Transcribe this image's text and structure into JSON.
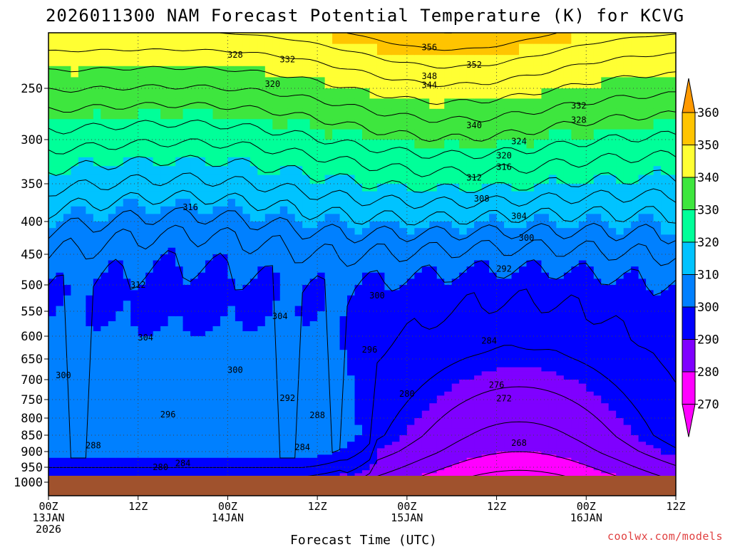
{
  "chart_data": {
    "type": "heatmap",
    "title": "2026011300 NAM Forecast Potential Temperature (K) for KCVG",
    "xlabel": "Forecast Time (UTC)",
    "ylabel": "",
    "x_ticks": [
      {
        "hour": 0,
        "lines": [
          "00Z",
          "13JAN",
          "2026"
        ]
      },
      {
        "hour": 12,
        "lines": [
          "12Z"
        ]
      },
      {
        "hour": 24,
        "lines": [
          "00Z",
          "14JAN"
        ]
      },
      {
        "hour": 36,
        "lines": [
          "12Z"
        ]
      },
      {
        "hour": 48,
        "lines": [
          "00Z",
          "15JAN"
        ]
      },
      {
        "hour": 60,
        "lines": [
          "12Z"
        ]
      },
      {
        "hour": 72,
        "lines": [
          "00Z",
          "16JAN"
        ]
      },
      {
        "hour": 84,
        "lines": [
          "12Z"
        ]
      }
    ],
    "xlim": [
      0,
      84
    ],
    "y_ticks": [
      250,
      300,
      350,
      400,
      450,
      500,
      550,
      600,
      650,
      700,
      750,
      800,
      850,
      900,
      950,
      1000
    ],
    "ylim": [
      200,
      1000
    ],
    "colorbar": {
      "labels": [
        "360",
        "350",
        "340",
        "330",
        "320",
        "310",
        "300",
        "290",
        "280",
        "270"
      ],
      "bins": [
        {
          "min": 360,
          "color": "#ff9900"
        },
        {
          "min": 350,
          "color": "#ffc400"
        },
        {
          "min": 340,
          "color": "#ffff33"
        },
        {
          "min": 330,
          "color": "#3ee63e"
        },
        {
          "min": 320,
          "color": "#00ff99"
        },
        {
          "min": 310,
          "color": "#00c3ff"
        },
        {
          "min": 300,
          "color": "#0080ff"
        },
        {
          "min": 290,
          "color": "#0000ff"
        },
        {
          "min": 280,
          "color": "#7f00ff"
        },
        {
          "min": 270,
          "color": "#ff00ff"
        },
        {
          "min": 0,
          "color": "#ff00ff"
        }
      ]
    },
    "ground": {
      "pressure": 977,
      "color": "#a0522d"
    },
    "contour_interval": 4,
    "contour_labels": [
      {
        "text": "356",
        "hour": 51,
        "p": 213
      },
      {
        "text": "352",
        "hour": 57,
        "p": 229
      },
      {
        "text": "348",
        "hour": 51,
        "p": 239
      },
      {
        "text": "344",
        "hour": 51,
        "p": 247
      },
      {
        "text": "340",
        "hour": 57,
        "p": 286
      },
      {
        "text": "332",
        "hour": 71,
        "p": 267
      },
      {
        "text": "328",
        "hour": 71,
        "p": 281
      },
      {
        "text": "328",
        "hour": 25,
        "p": 220
      },
      {
        "text": "332",
        "hour": 32,
        "p": 224
      },
      {
        "text": "320",
        "hour": 30,
        "p": 246
      },
      {
        "text": "324",
        "hour": 63,
        "p": 302
      },
      {
        "text": "320",
        "hour": 61,
        "p": 318
      },
      {
        "text": "316",
        "hour": 61,
        "p": 331
      },
      {
        "text": "312",
        "hour": 57,
        "p": 343
      },
      {
        "text": "308",
        "hour": 58,
        "p": 370
      },
      {
        "text": "304",
        "hour": 63,
        "p": 393
      },
      {
        "text": "300",
        "hour": 64,
        "p": 425
      },
      {
        "text": "316",
        "hour": 19,
        "p": 381
      },
      {
        "text": "312",
        "hour": 12,
        "p": 500
      },
      {
        "text": "304",
        "hour": 31,
        "p": 560
      },
      {
        "text": "300",
        "hour": 44,
        "p": 520
      },
      {
        "text": "292",
        "hour": 61,
        "p": 474
      },
      {
        "text": "296",
        "hour": 43,
        "p": 630
      },
      {
        "text": "304",
        "hour": 13,
        "p": 603
      },
      {
        "text": "300",
        "hour": 2,
        "p": 690
      },
      {
        "text": "300",
        "hour": 25,
        "p": 677
      },
      {
        "text": "284",
        "hour": 59,
        "p": 610
      },
      {
        "text": "292",
        "hour": 32,
        "p": 746
      },
      {
        "text": "296",
        "hour": 16,
        "p": 790
      },
      {
        "text": "280",
        "hour": 48,
        "p": 736
      },
      {
        "text": "276",
        "hour": 60,
        "p": 713
      },
      {
        "text": "272",
        "hour": 61,
        "p": 747
      },
      {
        "text": "288",
        "hour": 36,
        "p": 792
      },
      {
        "text": "288",
        "hour": 6,
        "p": 882
      },
      {
        "text": "284",
        "hour": 34,
        "p": 887
      },
      {
        "text": "284",
        "hour": 18,
        "p": 938
      },
      {
        "text": "268",
        "hour": 63,
        "p": 874
      },
      {
        "text": "280",
        "hour": 15,
        "p": 950
      }
    ]
  },
  "footer": {
    "credit": "coolwx.com/models"
  }
}
